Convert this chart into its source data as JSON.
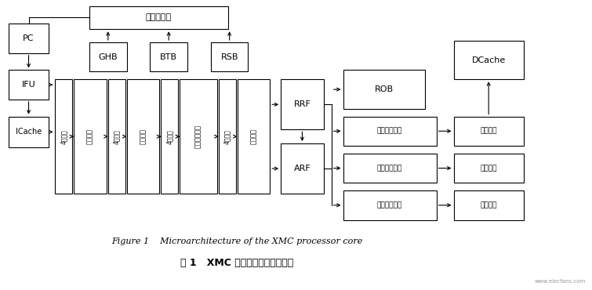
{
  "title_en": "Figure 1    Microarchitecture of the XMC processor core",
  "title_cn": "图 1   XMC 处理器核的微体系结构",
  "bg_color": "#ffffff",
  "box_edge": "#000000",
  "arrow_color": "#000000",
  "font_color": "#000000",
  "watermark": "www.elecfans.com",
  "bpu_label": "分支预测器",
  "ghb_label": "GHB",
  "btb_label": "BTB",
  "rsb_label": "RSB",
  "pc_label": "PC",
  "ifu_label": "IFU",
  "icache_label": "ICache",
  "instr_q": "指令队列",
  "dec_q": "译码队列",
  "ren_tab": "重命名映射表",
  "disp_q": "分派队列",
  "token4": "4条缓冲",
  "rrf_label": "RRF",
  "arf_label": "ARF",
  "rob_label": "ROB",
  "mem_iq": "访存发射队列",
  "int_iq": "整数发射队列",
  "fp_iq": "浮点发射队列",
  "dcache_label": "DCache",
  "mem_unit": "访存部件",
  "int_unit": "整数部件",
  "fp_unit": "浮点部件"
}
